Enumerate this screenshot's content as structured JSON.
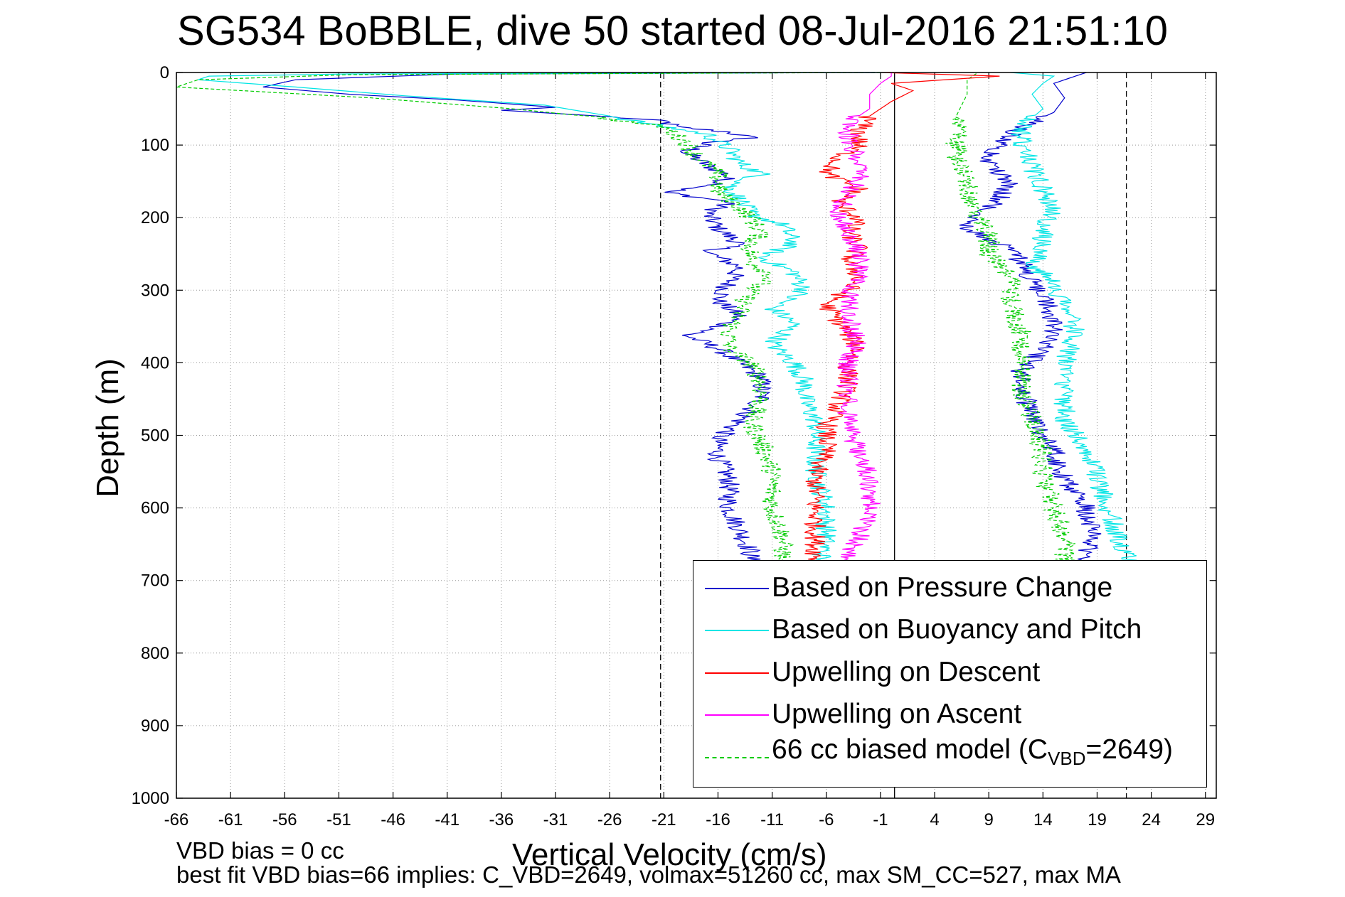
{
  "chart_data": {
    "type": "line",
    "title": "SG534 BoBBLE, dive 50 started 08-Jul-2016 21:51:10",
    "xlabel": "Vertical Velocity (cm/s)",
    "ylabel": "Depth (m)",
    "xlim": [
      -66,
      30
    ],
    "ylim": [
      0,
      1000
    ],
    "y_reversed": true,
    "grid": true,
    "x_ticks": [
      "-66",
      "-61",
      "-56",
      "-51",
      "-46",
      "-41",
      "-36",
      "-31",
      "-26",
      "-21",
      "-16",
      "-11",
      "-6",
      "-1",
      "4",
      "9",
      "14",
      "19",
      "24",
      "29"
    ],
    "y_ticks": [
      "0",
      "100",
      "200",
      "300",
      "400",
      "500",
      "600",
      "700",
      "800",
      "900",
      "1000"
    ],
    "reference_lines": [
      {
        "x": -21.3,
        "style": "dashed"
      },
      {
        "x": 0.3,
        "style": "solid"
      },
      {
        "x": 21.7,
        "style": "dashed"
      }
    ],
    "legend_position": "bottom-right",
    "legend": {
      "pressure": "Based on Pressure Change",
      "buoyancy": "Based on Buoyancy and Pitch",
      "up_descent": "Upwelling on Descent",
      "up_ascent": "Upwelling on Ascent",
      "model_prefix": "66 cc biased model (C",
      "model_sub": "VBD",
      "model_suffix": "=2649)"
    },
    "series": [
      {
        "key": "pressure_descent",
        "legend": "Based on Pressure Change",
        "color": "#0000cc",
        "points": [
          [
            -1.5,
            0
          ],
          [
            -40,
            2
          ],
          [
            -55,
            10
          ],
          [
            -58,
            20
          ],
          [
            -50,
            30
          ],
          [
            -40,
            38
          ],
          [
            -31,
            48
          ],
          [
            -36,
            52
          ],
          [
            -27,
            60
          ],
          [
            -21,
            67
          ],
          [
            -20,
            75
          ],
          [
            -15,
            82
          ],
          [
            -13,
            90
          ],
          [
            -17,
            97
          ],
          [
            -19,
            110
          ],
          [
            -17,
            128
          ],
          [
            -15,
            142
          ],
          [
            -16,
            155
          ],
          [
            -21,
            165
          ],
          [
            -15,
            178
          ],
          [
            -17,
            195
          ],
          [
            -16,
            215
          ],
          [
            -14,
            235
          ],
          [
            -17,
            248
          ],
          [
            -14,
            268
          ],
          [
            -15,
            290
          ],
          [
            -16,
            315
          ],
          [
            -14,
            335
          ],
          [
            -16,
            352
          ],
          [
            -19,
            362
          ],
          [
            -16,
            380
          ],
          [
            -14,
            400
          ],
          [
            -12,
            420
          ],
          [
            -12,
            450
          ],
          [
            -14,
            480
          ],
          [
            -16,
            505
          ],
          [
            -16,
            530
          ],
          [
            -15,
            560
          ],
          [
            -15,
            600
          ],
          [
            -14,
            630
          ],
          [
            -13,
            660
          ],
          [
            -13,
            672
          ]
        ]
      },
      {
        "key": "pressure_ascent",
        "legend": "Based on Pressure Change",
        "color": "#0000cc",
        "points": [
          [
            18,
            672
          ],
          [
            18.5,
            640
          ],
          [
            18,
            600
          ],
          [
            16,
            560
          ],
          [
            15,
            520
          ],
          [
            14,
            500
          ],
          [
            13,
            470
          ],
          [
            12,
            440
          ],
          [
            12,
            410
          ],
          [
            14,
            380
          ],
          [
            15,
            350
          ],
          [
            14.5,
            320
          ],
          [
            13,
            290
          ],
          [
            12,
            260
          ],
          [
            10,
            235
          ],
          [
            7,
            215
          ],
          [
            8,
            195
          ],
          [
            10,
            175
          ],
          [
            11,
            150
          ],
          [
            9,
            125
          ],
          [
            10,
            100
          ],
          [
            12,
            75
          ],
          [
            15,
            55
          ],
          [
            16,
            35
          ],
          [
            15,
            15
          ],
          [
            17,
            5
          ],
          [
            18,
            0
          ]
        ]
      },
      {
        "key": "buoyancy_descent",
        "legend": "Based on Buoyancy and Pitch",
        "color": "#00e5e5",
        "points": [
          [
            -0.5,
            0
          ],
          [
            -50,
            2
          ],
          [
            -63,
            5
          ],
          [
            -64,
            10
          ],
          [
            -55,
            20
          ],
          [
            -45,
            32
          ],
          [
            -32,
            45
          ],
          [
            -26,
            60
          ],
          [
            -22,
            72
          ],
          [
            -17,
            85
          ],
          [
            -15,
            105
          ],
          [
            -14,
            125
          ],
          [
            -12,
            140
          ],
          [
            -15,
            158
          ],
          [
            -14,
            175
          ],
          [
            -13,
            195
          ],
          [
            -10,
            210
          ],
          [
            -9,
            235
          ],
          [
            -12,
            255
          ],
          [
            -9,
            275
          ],
          [
            -8,
            300
          ],
          [
            -11,
            325
          ],
          [
            -9,
            345
          ],
          [
            -11,
            375
          ],
          [
            -9,
            400
          ],
          [
            -8,
            425
          ],
          [
            -8,
            450
          ],
          [
            -7,
            480
          ],
          [
            -7,
            510
          ],
          [
            -7,
            550
          ],
          [
            -6,
            600
          ],
          [
            -6,
            640
          ],
          [
            -6.5,
            672
          ]
        ]
      },
      {
        "key": "buoyancy_ascent",
        "legend": "Based on Buoyancy and Pitch",
        "color": "#00e5e5",
        "points": [
          [
            22,
            672
          ],
          [
            21,
            640
          ],
          [
            20,
            600
          ],
          [
            19,
            560
          ],
          [
            18,
            520
          ],
          [
            16,
            480
          ],
          [
            16,
            440
          ],
          [
            16,
            400
          ],
          [
            17,
            360
          ],
          [
            16,
            320
          ],
          [
            15,
            290
          ],
          [
            13,
            265
          ],
          [
            14,
            240
          ],
          [
            14,
            215
          ],
          [
            15,
            190
          ],
          [
            14,
            160
          ],
          [
            13,
            130
          ],
          [
            12,
            100
          ],
          [
            12,
            75
          ],
          [
            14,
            50
          ],
          [
            13,
            30
          ],
          [
            14,
            15
          ],
          [
            15,
            5
          ],
          [
            11,
            0
          ]
        ]
      },
      {
        "key": "model_descent",
        "legend": "66 cc biased model",
        "color": "#00cc00",
        "points": [
          [
            -1,
            0
          ],
          [
            -50,
            3
          ],
          [
            -64,
            10
          ],
          [
            -66,
            20
          ],
          [
            -48,
            35
          ],
          [
            -35,
            50
          ],
          [
            -27,
            62
          ],
          [
            -21,
            75
          ],
          [
            -19,
            95
          ],
          [
            -18,
            115
          ],
          [
            -16,
            140
          ],
          [
            -16,
            165
          ],
          [
            -14,
            185
          ],
          [
            -13,
            200
          ],
          [
            -12,
            220
          ],
          [
            -13,
            240
          ],
          [
            -13,
            260
          ],
          [
            -11,
            280
          ],
          [
            -13,
            300
          ],
          [
            -14,
            330
          ],
          [
            -15,
            355
          ],
          [
            -15,
            380
          ],
          [
            -13,
            400
          ],
          [
            -12,
            425
          ],
          [
            -12,
            450
          ],
          [
            -13,
            480
          ],
          [
            -12,
            510
          ],
          [
            -11,
            550
          ],
          [
            -11,
            600
          ],
          [
            -10,
            640
          ],
          [
            -10,
            672
          ]
        ]
      },
      {
        "key": "model_ascent",
        "legend": "66 cc biased model",
        "color": "#00cc00",
        "points": [
          [
            16,
            672
          ],
          [
            16,
            640
          ],
          [
            15,
            600
          ],
          [
            14,
            560
          ],
          [
            14,
            520
          ],
          [
            13,
            480
          ],
          [
            12,
            440
          ],
          [
            12,
            400
          ],
          [
            12,
            360
          ],
          [
            11,
            320
          ],
          [
            11,
            280
          ],
          [
            9,
            250
          ],
          [
            9,
            225
          ],
          [
            8,
            200
          ],
          [
            7,
            175
          ],
          [
            7,
            150
          ],
          [
            6,
            120
          ],
          [
            6,
            90
          ],
          [
            6,
            60
          ],
          [
            7,
            30
          ],
          [
            7,
            10
          ],
          [
            8,
            0
          ]
        ]
      },
      {
        "key": "upwelling_descent",
        "legend": "Upwelling on Descent",
        "color": "#ff0000",
        "points": [
          [
            -1,
            0
          ],
          [
            10,
            5
          ],
          [
            0,
            15
          ],
          [
            2,
            25
          ],
          [
            0,
            40
          ],
          [
            -2,
            60
          ],
          [
            -3,
            80
          ],
          [
            -3,
            100
          ],
          [
            -5,
            120
          ],
          [
            -6,
            140
          ],
          [
            -3,
            160
          ],
          [
            -5,
            180
          ],
          [
            -3,
            200
          ],
          [
            -4,
            220
          ],
          [
            -3,
            240
          ],
          [
            -4,
            260
          ],
          [
            -3,
            280
          ],
          [
            -4,
            300
          ],
          [
            -6,
            320
          ],
          [
            -5,
            340
          ],
          [
            -4,
            360
          ],
          [
            -3,
            380
          ],
          [
            -4,
            400
          ],
          [
            -4,
            430
          ],
          [
            -5,
            460
          ],
          [
            -6,
            490
          ],
          [
            -6,
            520
          ],
          [
            -7,
            550
          ],
          [
            -7,
            580
          ],
          [
            -7,
            610
          ],
          [
            -7,
            640
          ],
          [
            -7,
            672
          ]
        ]
      },
      {
        "key": "upwelling_ascent",
        "legend": "Upwelling on Ascent",
        "color": "#ff00ff",
        "points": [
          [
            -4,
            672
          ],
          [
            -3,
            640
          ],
          [
            -2,
            600
          ],
          [
            -2,
            560
          ],
          [
            -3,
            520
          ],
          [
            -4,
            490
          ],
          [
            -4,
            460
          ],
          [
            -4,
            430
          ],
          [
            -4,
            400
          ],
          [
            -3,
            370
          ],
          [
            -4,
            340
          ],
          [
            -4,
            310
          ],
          [
            -3,
            280
          ],
          [
            -3,
            250
          ],
          [
            -4,
            220
          ],
          [
            -5,
            195
          ],
          [
            -4,
            170
          ],
          [
            -3,
            145
          ],
          [
            -3,
            120
          ],
          [
            -4,
            95
          ],
          [
            -4,
            70
          ],
          [
            -2,
            50
          ],
          [
            -2,
            30
          ],
          [
            -1,
            15
          ],
          [
            0,
            5
          ],
          [
            0,
            0
          ]
        ]
      }
    ]
  },
  "footnotes": {
    "line1": "VBD bias = 0 cc",
    "line2": "best fit VBD bias=66 implies: C_VBD=2649, volmax=51260 cc, max SM_CC=527, max MA"
  }
}
